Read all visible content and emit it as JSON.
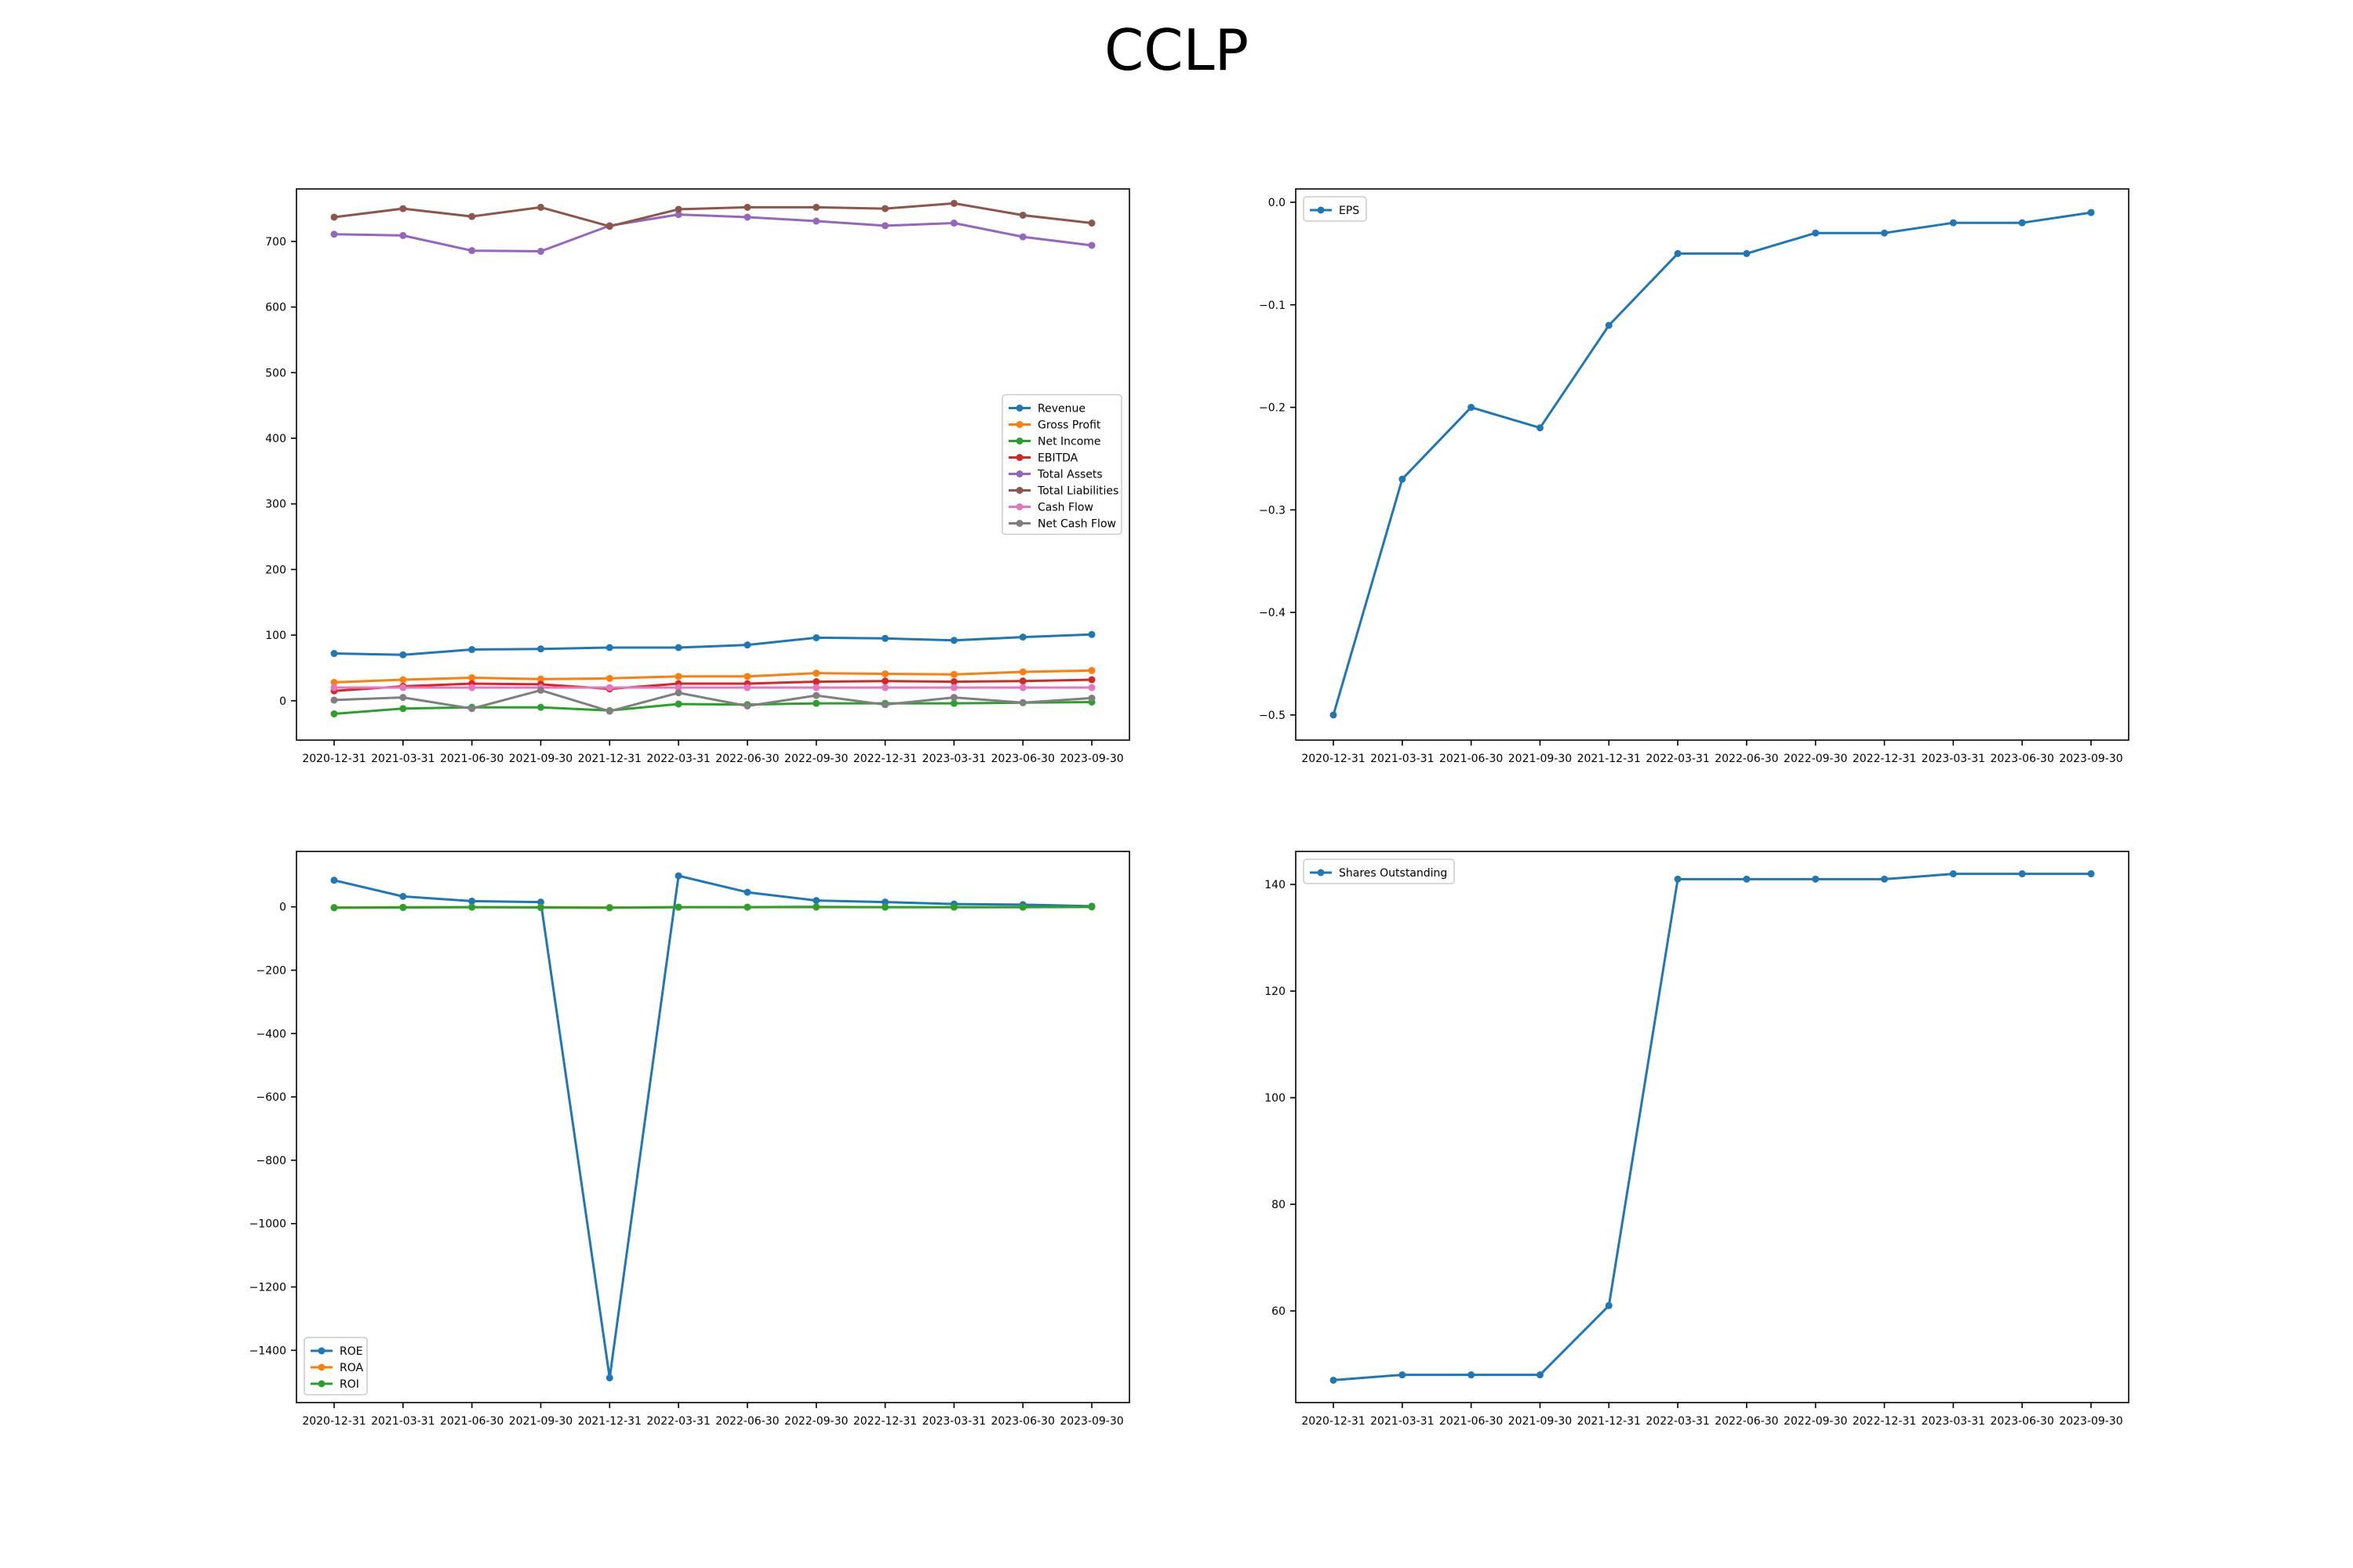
{
  "page": {
    "title": "CCLP"
  },
  "chart_data": [
    {
      "type": "line",
      "x": [
        "2020-12-31",
        "2021-03-31",
        "2021-06-30",
        "2021-09-30",
        "2021-12-31",
        "2022-03-31",
        "2022-06-30",
        "2022-09-30",
        "2022-12-31",
        "2023-03-31",
        "2023-06-30",
        "2023-09-30"
      ],
      "ylim": [
        -60,
        780
      ],
      "yticks": [
        0,
        100,
        200,
        300,
        400,
        500,
        600,
        700
      ],
      "grid": false,
      "legend": "center-right",
      "series": [
        {
          "name": "Revenue",
          "color": "#1f77b4",
          "values": [
            72,
            70,
            78,
            79,
            81,
            81,
            85,
            96,
            95,
            92,
            97,
            101
          ]
        },
        {
          "name": "Gross Profit",
          "color": "#ff7f0e",
          "values": [
            28,
            32,
            35,
            33,
            34,
            37,
            37,
            42,
            41,
            40,
            44,
            46
          ]
        },
        {
          "name": "Net Income",
          "color": "#2ca02c",
          "values": [
            -20,
            -12,
            -10,
            -10,
            -15,
            -5,
            -6,
            -4,
            -4,
            -4,
            -3,
            -2
          ]
        },
        {
          "name": "EBITDA",
          "color": "#d62728",
          "values": [
            15,
            22,
            26,
            25,
            18,
            26,
            26,
            29,
            30,
            29,
            30,
            32
          ]
        },
        {
          "name": "Total Assets",
          "color": "#9467bd",
          "values": [
            711,
            709,
            686,
            685,
            724,
            741,
            737,
            731,
            724,
            728,
            707,
            694
          ]
        },
        {
          "name": "Total Liabilities",
          "color": "#8c564b",
          "values": [
            737,
            750,
            738,
            752,
            723,
            749,
            752,
            752,
            750,
            758,
            740,
            728
          ]
        },
        {
          "name": "Cash Flow",
          "color": "#e377c2",
          "values": [
            20,
            20,
            20,
            20,
            20,
            20,
            20,
            20,
            20,
            20,
            20,
            20
          ]
        },
        {
          "name": "Net Cash Flow",
          "color": "#7f7f7f",
          "values": [
            1,
            5,
            -12,
            16,
            -16,
            12,
            -8,
            8,
            -6,
            5,
            -3,
            4
          ]
        }
      ]
    },
    {
      "type": "line",
      "x": [
        "2020-12-31",
        "2021-03-31",
        "2021-06-30",
        "2021-09-30",
        "2021-12-31",
        "2022-03-31",
        "2022-06-30",
        "2022-09-30",
        "2022-12-31",
        "2023-03-31",
        "2023-06-30",
        "2023-09-30"
      ],
      "ylim": [
        -0.5245,
        0.013
      ],
      "yticks": [
        -0.5,
        -0.4,
        -0.3,
        -0.2,
        -0.1,
        0.0
      ],
      "grid": false,
      "legend": "top-left",
      "series": [
        {
          "name": "EPS",
          "color": "#1f77b4",
          "values": [
            -0.5,
            -0.27,
            -0.2,
            -0.22,
            -0.12,
            -0.05,
            -0.05,
            -0.03,
            -0.03,
            -0.02,
            -0.02,
            -0.01
          ]
        }
      ]
    },
    {
      "type": "line",
      "x": [
        "2020-12-31",
        "2021-03-31",
        "2021-06-30",
        "2021-09-30",
        "2021-12-31",
        "2022-03-31",
        "2022-06-30",
        "2022-09-30",
        "2022-12-31",
        "2023-03-31",
        "2023-06-30",
        "2023-09-30"
      ],
      "ylim": [
        -1565,
        175
      ],
      "yticks": [
        0,
        -200,
        -400,
        -600,
        -800,
        -1000,
        -1200,
        -1400
      ],
      "grid": false,
      "legend": "bottom-left",
      "series": [
        {
          "name": "ROE",
          "color": "#1f77b4",
          "values": [
            84,
            33,
            18,
            15,
            -1487,
            98,
            46,
            20,
            15,
            9,
            7,
            2
          ]
        },
        {
          "name": "ROA",
          "color": "#ff7f0e",
          "values": [
            -2,
            -1,
            -1,
            -1,
            -2,
            -1,
            -1,
            -1,
            -1,
            -1,
            -1,
            0
          ]
        },
        {
          "name": "ROI",
          "color": "#2ca02c",
          "values": [
            -3,
            -2,
            -1,
            -2,
            -3,
            -1,
            -1,
            0,
            -1,
            -1,
            -1,
            0
          ]
        }
      ]
    },
    {
      "type": "line",
      "x": [
        "2020-12-31",
        "2021-03-31",
        "2021-06-30",
        "2021-09-30",
        "2021-12-31",
        "2022-03-31",
        "2022-06-30",
        "2022-09-30",
        "2022-12-31",
        "2023-03-31",
        "2023-06-30",
        "2023-09-30"
      ],
      "ylim": [
        42.8,
        146.2
      ],
      "yticks": [
        60,
        80,
        100,
        120,
        140
      ],
      "grid": false,
      "legend": "top-left",
      "series": [
        {
          "name": "Shares Outstanding",
          "color": "#1f77b4",
          "values": [
            47,
            48,
            48,
            48,
            61,
            141,
            141,
            141,
            141,
            142,
            142,
            142
          ]
        }
      ]
    }
  ]
}
